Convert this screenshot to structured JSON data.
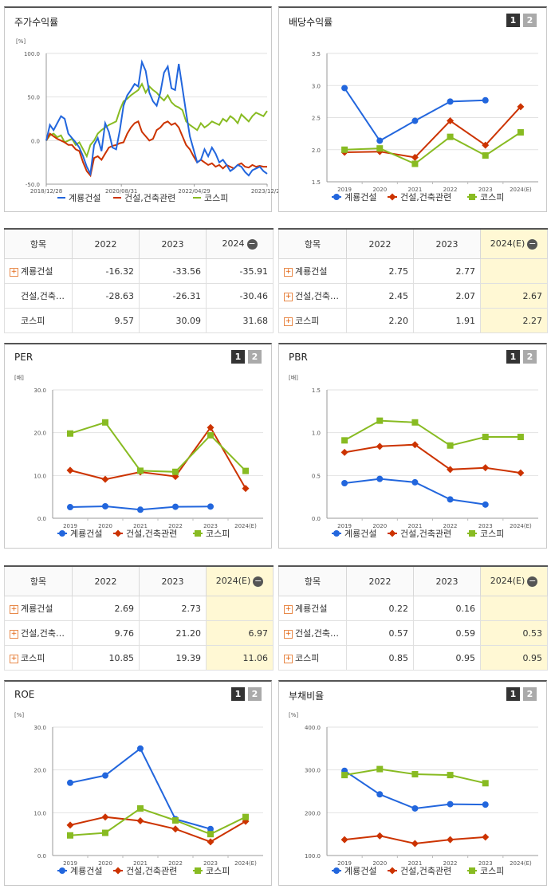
{
  "colors": {
    "s1": "#2266dd",
    "s2": "#cc3300",
    "s3": "#88bb22"
  },
  "legend": [
    "계룡건설",
    "건설,건축관련",
    "코스피"
  ],
  "tabs": {
    "one": "1",
    "two": "2"
  },
  "panels": {
    "stock": {
      "title": "주가수익률",
      "unit": "[%]",
      "legend_marker": "line"
    },
    "div": {
      "title": "배당수익률",
      "unit": "",
      "legend_marker": "marker"
    },
    "per": {
      "title": "PER",
      "unit": "[배]",
      "legend_marker": "marker"
    },
    "pbr": {
      "title": "PBR",
      "unit": "[배]",
      "legend_marker": "marker"
    },
    "roe": {
      "title": "ROE",
      "unit": "[%]",
      "legend_marker": "marker"
    },
    "debt": {
      "title": "부채비율",
      "unit": "[%]",
      "legend_marker": "marker"
    }
  },
  "tables": {
    "stock": {
      "header": [
        "항목",
        "2022",
        "2023",
        "2024"
      ],
      "minus": "−",
      "rows": [
        {
          "name": "계룡건설",
          "plus": "+",
          "v": [
            "-16.32",
            "-33.56",
            "-35.91"
          ]
        },
        {
          "name": "건설,건축…",
          "plus": "",
          "v": [
            "-28.63",
            "-26.31",
            "-30.46"
          ]
        },
        {
          "name": "코스피",
          "plus": "",
          "v": [
            "9.57",
            "30.09",
            "31.68"
          ]
        }
      ]
    },
    "div": {
      "header": [
        "항목",
        "2022",
        "2023",
        "2024(E)"
      ],
      "minus": "−",
      "rows": [
        {
          "name": "계룡건설",
          "plus": "+",
          "v": [
            "2.75",
            "2.77",
            ""
          ]
        },
        {
          "name": "건설,건축…",
          "plus": "+",
          "v": [
            "2.45",
            "2.07",
            "2.67"
          ]
        },
        {
          "name": "코스피",
          "plus": "+",
          "v": [
            "2.20",
            "1.91",
            "2.27"
          ]
        }
      ]
    },
    "per": {
      "header": [
        "항목",
        "2022",
        "2023",
        "2024(E)"
      ],
      "minus": "−",
      "rows": [
        {
          "name": "계룡건설",
          "plus": "+",
          "v": [
            "2.69",
            "2.73",
            ""
          ]
        },
        {
          "name": "건설,건축…",
          "plus": "+",
          "v": [
            "9.76",
            "21.20",
            "6.97"
          ]
        },
        {
          "name": "코스피",
          "plus": "+",
          "v": [
            "10.85",
            "19.39",
            "11.06"
          ]
        }
      ]
    },
    "pbr": {
      "header": [
        "항목",
        "2022",
        "2023",
        "2024(E)"
      ],
      "minus": "−",
      "rows": [
        {
          "name": "계룡건설",
          "plus": "+",
          "v": [
            "0.22",
            "0.16",
            ""
          ]
        },
        {
          "name": "건설,건축…",
          "plus": "+",
          "v": [
            "0.57",
            "0.59",
            "0.53"
          ]
        },
        {
          "name": "코스피",
          "plus": "+",
          "v": [
            "0.85",
            "0.95",
            "0.95"
          ]
        }
      ]
    }
  },
  "chart_data": [
    {
      "id": "stock",
      "type": "line",
      "title": "주가수익률",
      "ylabel": "[%]",
      "ylim": [
        -50,
        100
      ],
      "yticks": [
        "100.0",
        "50.0",
        "0.0",
        "-50.0"
      ],
      "xticks": [
        "2018/12/28",
        "2020/08/31",
        "2022/04/29",
        "2023/12/28"
      ],
      "series": [
        {
          "name": "계룡건설",
          "values": [
            0,
            18,
            12,
            20,
            28,
            25,
            8,
            3,
            -2,
            -8,
            -18,
            -30,
            -38,
            -5,
            3,
            -12,
            20,
            10,
            -8,
            -10,
            12,
            40,
            52,
            58,
            65,
            62,
            90,
            80,
            55,
            45,
            40,
            55,
            78,
            85,
            60,
            58,
            88,
            60,
            32,
            5,
            -10,
            -25,
            -22,
            -10,
            -18,
            -8,
            -15,
            -25,
            -22,
            -28,
            -35,
            -32,
            -28,
            -30,
            -36,
            -40,
            -34,
            -32,
            -30,
            -35,
            -38
          ]
        },
        {
          "name": "건설,건축관련",
          "values": [
            0,
            8,
            5,
            2,
            0,
            -2,
            -5,
            -5,
            -10,
            -12,
            -25,
            -35,
            -40,
            -20,
            -18,
            -22,
            -15,
            -8,
            -6,
            -5,
            -3,
            -2,
            8,
            15,
            20,
            22,
            10,
            5,
            0,
            2,
            12,
            15,
            20,
            22,
            18,
            20,
            15,
            5,
            -5,
            -10,
            -18,
            -25,
            -22,
            -25,
            -28,
            -26,
            -30,
            -28,
            -32,
            -28,
            -30,
            -32,
            -28,
            -26,
            -30,
            -31,
            -28,
            -30,
            -29,
            -30,
            -30
          ]
        },
        {
          "name": "코스피",
          "values": [
            0,
            6,
            8,
            4,
            6,
            -2,
            0,
            2,
            -5,
            -2,
            -10,
            -18,
            -5,
            0,
            8,
            12,
            15,
            18,
            20,
            22,
            35,
            45,
            48,
            52,
            55,
            58,
            65,
            55,
            62,
            58,
            55,
            50,
            46,
            52,
            44,
            40,
            38,
            35,
            22,
            18,
            15,
            12,
            20,
            15,
            18,
            22,
            20,
            18,
            25,
            22,
            28,
            25,
            20,
            30,
            26,
            22,
            28,
            32,
            30,
            28,
            34
          ]
        }
      ]
    },
    {
      "id": "div",
      "type": "line",
      "title": "배당수익률",
      "ylim": [
        1.5,
        3.5
      ],
      "yticks": [
        "3.5",
        "3.0",
        "2.5",
        "2.0",
        "1.5"
      ],
      "categories": [
        "2019",
        "2020",
        "2021",
        "2022",
        "2023",
        "2024(E)"
      ],
      "series": [
        {
          "name": "계룡건설",
          "values": [
            2.96,
            2.14,
            2.45,
            2.75,
            2.77,
            null
          ]
        },
        {
          "name": "건설,건축관련",
          "values": [
            1.96,
            1.97,
            1.88,
            2.45,
            2.07,
            2.67
          ]
        },
        {
          "name": "코스피",
          "values": [
            2.0,
            2.02,
            1.78,
            2.2,
            1.91,
            2.27
          ]
        }
      ]
    },
    {
      "id": "per",
      "type": "line",
      "title": "PER",
      "ylabel": "[배]",
      "ylim": [
        0,
        30
      ],
      "yticks": [
        "30.0",
        "20.0",
        "10.0",
        "0.0"
      ],
      "categories": [
        "2019",
        "2020",
        "2021",
        "2022",
        "2023",
        "2024(E)"
      ],
      "series": [
        {
          "name": "계룡건설",
          "values": [
            2.6,
            2.8,
            2.0,
            2.69,
            2.73,
            null
          ]
        },
        {
          "name": "건설,건축관련",
          "values": [
            11.2,
            9.1,
            10.8,
            9.76,
            21.2,
            6.97
          ]
        },
        {
          "name": "코스피",
          "values": [
            19.8,
            22.4,
            11.1,
            10.85,
            19.39,
            11.06
          ]
        }
      ]
    },
    {
      "id": "pbr",
      "type": "line",
      "title": "PBR",
      "ylabel": "[배]",
      "ylim": [
        0,
        1.5
      ],
      "yticks": [
        "1.5",
        "1.0",
        "0.5",
        "0.0"
      ],
      "categories": [
        "2019",
        "2020",
        "2021",
        "2022",
        "2023",
        "2024(E)"
      ],
      "series": [
        {
          "name": "계룡건설",
          "values": [
            0.41,
            0.46,
            0.42,
            0.22,
            0.16,
            null
          ]
        },
        {
          "name": "건설,건축관련",
          "values": [
            0.77,
            0.84,
            0.86,
            0.57,
            0.59,
            0.53
          ]
        },
        {
          "name": "코스피",
          "values": [
            0.91,
            1.14,
            1.12,
            0.85,
            0.95,
            0.95
          ]
        }
      ]
    },
    {
      "id": "roe",
      "type": "line",
      "title": "ROE",
      "ylabel": "[%]",
      "ylim": [
        0,
        30
      ],
      "yticks": [
        "30.0",
        "20.0",
        "10.0",
        "0.0"
      ],
      "categories": [
        "2019",
        "2020",
        "2021",
        "2022",
        "2023",
        "2024(E)"
      ],
      "series": [
        {
          "name": "계룡건설",
          "values": [
            17.0,
            18.7,
            25.0,
            8.5,
            6.2,
            null
          ]
        },
        {
          "name": "건설,건축관련",
          "values": [
            7.1,
            9.0,
            8.1,
            6.2,
            3.2,
            8.0
          ]
        },
        {
          "name": "코스피",
          "values": [
            4.7,
            5.3,
            11.0,
            8.2,
            5.0,
            9.0
          ]
        }
      ]
    },
    {
      "id": "debt",
      "type": "line",
      "title": "부채비율",
      "ylabel": "[%]",
      "ylim": [
        100,
        400
      ],
      "yticks": [
        "400.0",
        "300.0",
        "200.0",
        "100.0"
      ],
      "categories": [
        "2019",
        "2020",
        "2021",
        "2022",
        "2023",
        "2024(E)"
      ],
      "series": [
        {
          "name": "계룡건설",
          "values": [
            298,
            243,
            210,
            220,
            219,
            null
          ]
        },
        {
          "name": "건설,건축관련",
          "values": [
            137,
            146,
            128,
            137,
            143,
            null
          ]
        },
        {
          "name": "코스피",
          "values": [
            288,
            302,
            290,
            288,
            269,
            null
          ]
        }
      ]
    }
  ]
}
